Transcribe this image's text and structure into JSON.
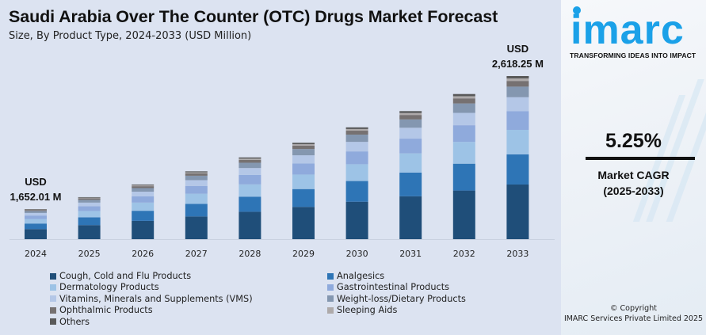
{
  "header": {
    "title": "Saudi Arabia Over The Counter (OTC) Drugs Market Forecast",
    "subtitle": "Size, By Product Type, 2024-2033 (USD Million)"
  },
  "brand": {
    "logo_text": "imarc",
    "tagline": "TRANSFORMING IDEAS INTO IMPACT",
    "color": "#1ba1e8"
  },
  "cagr": {
    "value": "5.25%",
    "label_line1": "Market CAGR",
    "label_line2": "(2025-2033)"
  },
  "copyright": {
    "line1": "© Copyright",
    "line2": "IMARC Services Private Limited 2025"
  },
  "chart_data": {
    "type": "bar",
    "stacked": true,
    "title": "Saudi Arabia Over The Counter (OTC) Drugs Market Forecast",
    "subtitle": "Size, By Product Type, 2024-2033 (USD Million)",
    "xlabel": "",
    "ylabel": "USD Million",
    "y_axis_visible": false,
    "grid": false,
    "legend_position": "bottom",
    "categories": [
      "2024",
      "2025",
      "2026",
      "2027",
      "2028",
      "2029",
      "2030",
      "2031",
      "2032",
      "2033"
    ],
    "totals": [
      1652.01,
      1738.7,
      1830.0,
      1926.1,
      2027.2,
      2133.6,
      2245.6,
      2363.5,
      2487.6,
      2618.25
    ],
    "annotations": [
      {
        "category": "2024",
        "line1": "USD",
        "line2": "1,652.01 M"
      },
      {
        "category": "2033",
        "line1": "USD",
        "line2": "2,618.25 M"
      }
    ],
    "series": [
      {
        "name": "Cough, Cold and Flu Products",
        "color": "#1f4e79",
        "share": 0.335
      },
      {
        "name": "Analgesics",
        "color": "#2e75b6",
        "share": 0.185
      },
      {
        "name": "Dermatology Products",
        "color": "#9dc3e6",
        "share": 0.15
      },
      {
        "name": "Gastrointestinal Products",
        "color": "#8faadc",
        "share": 0.115
      },
      {
        "name": "Vitamins, Minerals and Supplements (VMS)",
        "color": "#b4c7e7",
        "share": 0.085
      },
      {
        "name": "Weight-loss/Dietary Products",
        "color": "#8497b0",
        "share": 0.065
      },
      {
        "name": "Ophthalmic Products",
        "color": "#767171",
        "share": 0.035
      },
      {
        "name": "Sleeping Aids",
        "color": "#aeaaaa",
        "share": 0.015
      },
      {
        "name": "Others",
        "color": "#595959",
        "share": 0.015
      }
    ]
  }
}
